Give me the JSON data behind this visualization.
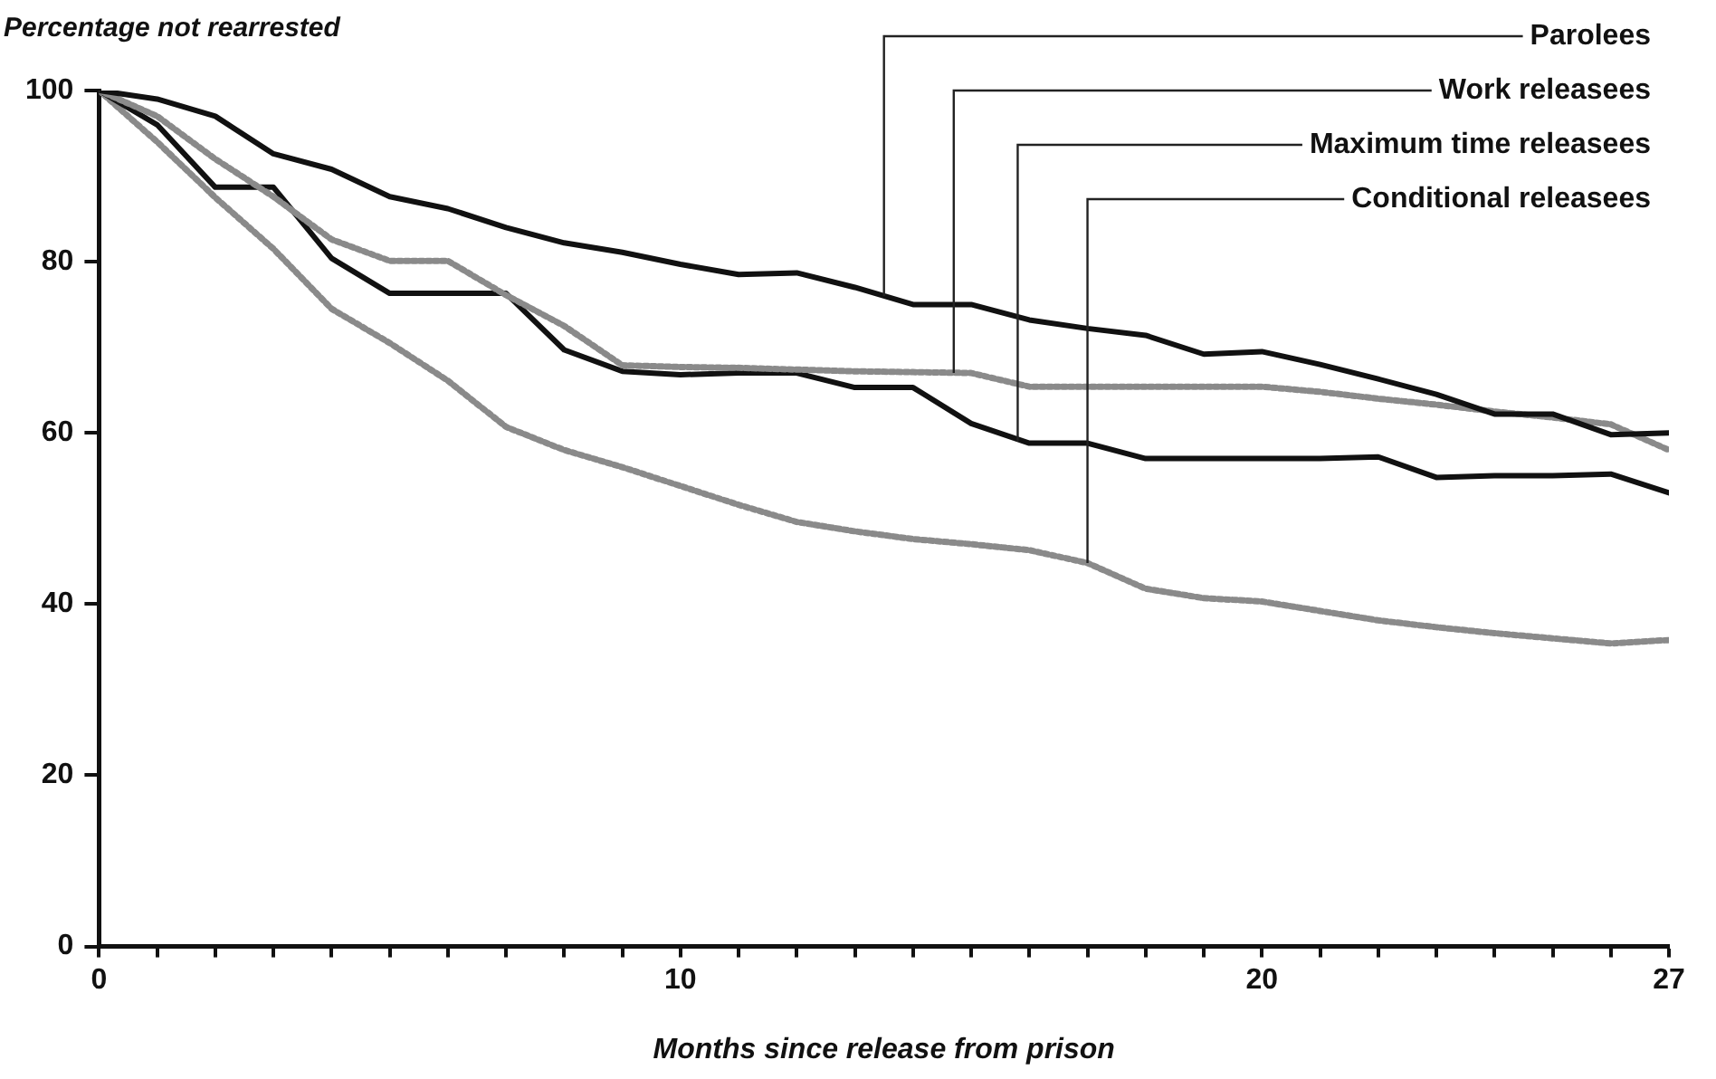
{
  "chart_data": {
    "type": "line",
    "ylabel": "Percentage not rearrested",
    "xlabel": "Months since release from prison",
    "xlim": [
      0,
      27
    ],
    "ylim": [
      0,
      100
    ],
    "xticks": [
      0,
      {
        "value": 1,
        "label": null
      },
      {
        "value": 2,
        "label": null
      },
      {
        "value": 3,
        "label": null
      },
      {
        "value": 4,
        "label": null
      },
      {
        "value": 5,
        "label": null
      },
      {
        "value": 6,
        "label": null
      },
      {
        "value": 7,
        "label": null
      },
      {
        "value": 8,
        "label": null
      },
      {
        "value": 9,
        "label": null
      },
      10,
      {
        "value": 11,
        "label": null
      },
      {
        "value": 12,
        "label": null
      },
      {
        "value": 13,
        "label": null
      },
      {
        "value": 14,
        "label": null
      },
      {
        "value": 15,
        "label": null
      },
      {
        "value": 16,
        "label": null
      },
      {
        "value": 17,
        "label": null
      },
      {
        "value": 18,
        "label": null
      },
      {
        "value": 19,
        "label": null
      },
      20,
      {
        "value": 21,
        "label": null
      },
      {
        "value": 22,
        "label": null
      },
      {
        "value": 23,
        "label": null
      },
      {
        "value": 24,
        "label": null
      },
      {
        "value": 25,
        "label": null
      },
      {
        "value": 26,
        "label": null
      },
      27
    ],
    "yticks": [
      0,
      20,
      40,
      60,
      80,
      100
    ],
    "grid": false,
    "legend": false,
    "marker": "none",
    "series": [
      {
        "color": "#111111",
        "line_style": "solid",
        "x": [
          0,
          1,
          2,
          3,
          4,
          5,
          6,
          7,
          8,
          9,
          10,
          11,
          12,
          13,
          14,
          15,
          16,
          17,
          18,
          19,
          20,
          21,
          22,
          23,
          24,
          25,
          26,
          27
        ],
        "values": [
          100,
          99,
          97,
          92.6,
          90.8,
          87.6,
          86.2,
          84,
          82.2,
          81.1,
          79.7,
          78.5,
          78.7,
          77,
          75,
          75,
          73.2,
          72.2,
          71.4,
          69.2,
          69.5,
          68,
          66.3,
          64.5,
          62.2,
          62.2,
          59.8,
          60
        ]
      },
      {
        "color": "#8a8a8a",
        "line_style": "dotted",
        "x": [
          0,
          1,
          2,
          3,
          4,
          5,
          6,
          7,
          8,
          9,
          10,
          11,
          12,
          13,
          14,
          15,
          16,
          17,
          18,
          19,
          20,
          21,
          22,
          23,
          24,
          25,
          26,
          27
        ],
        "values": [
          100,
          97,
          92,
          87.6,
          82.6,
          80.1,
          80.1,
          76.1,
          72.5,
          67.9,
          67.7,
          67.6,
          67.4,
          67.2,
          67.1,
          67,
          65.4,
          65.4,
          65.4,
          65.4,
          65.4,
          64.8,
          64,
          63.3,
          62.5,
          61.8,
          61,
          58
        ]
      },
      {
        "color": "#111111",
        "line_style": "solid",
        "x": [
          0,
          1,
          2,
          3,
          4,
          5,
          6,
          7,
          8,
          9,
          10,
          11,
          12,
          13,
          14,
          15,
          16,
          17,
          18,
          19,
          20,
          21,
          22,
          23,
          24,
          25,
          26,
          27
        ],
        "values": [
          100,
          96,
          88.7,
          88.7,
          80.4,
          76.3,
          76.3,
          76.3,
          69.7,
          67.2,
          66.8,
          67,
          67,
          65.3,
          65.3,
          61.1,
          58.8,
          58.8,
          57,
          57,
          57,
          57,
          57.2,
          54.8,
          55,
          55,
          55.2,
          53
        ]
      },
      {
        "color": "#8a8a8a",
        "line_style": "dotted",
        "x": [
          0,
          1,
          2,
          3,
          4,
          5,
          6,
          7,
          8,
          9,
          10,
          11,
          12,
          13,
          14,
          15,
          16,
          17,
          18,
          19,
          20,
          21,
          22,
          23,
          24,
          25,
          26,
          27
        ],
        "values": [
          100,
          94,
          87.5,
          81.5,
          74.5,
          70.5,
          66.1,
          60.7,
          58,
          56,
          53.8,
          51.6,
          49.6,
          48.5,
          47.6,
          47,
          46.3,
          44.8,
          41.8,
          40.7,
          40.3,
          39.2,
          38.1,
          37.3,
          36.6,
          36,
          35.4,
          35.8
        ]
      }
    ],
    "annotations": [
      {
        "text": "Parolees",
        "x": 13.5,
        "y": 76
      },
      {
        "text": "Work releasees",
        "x": 14.7,
        "y": 67
      },
      {
        "text": "Maximum time releasees",
        "x": 15.8,
        "y": 59
      },
      {
        "text": "Conditional releasees",
        "x": 17,
        "y": 44.8
      }
    ]
  }
}
